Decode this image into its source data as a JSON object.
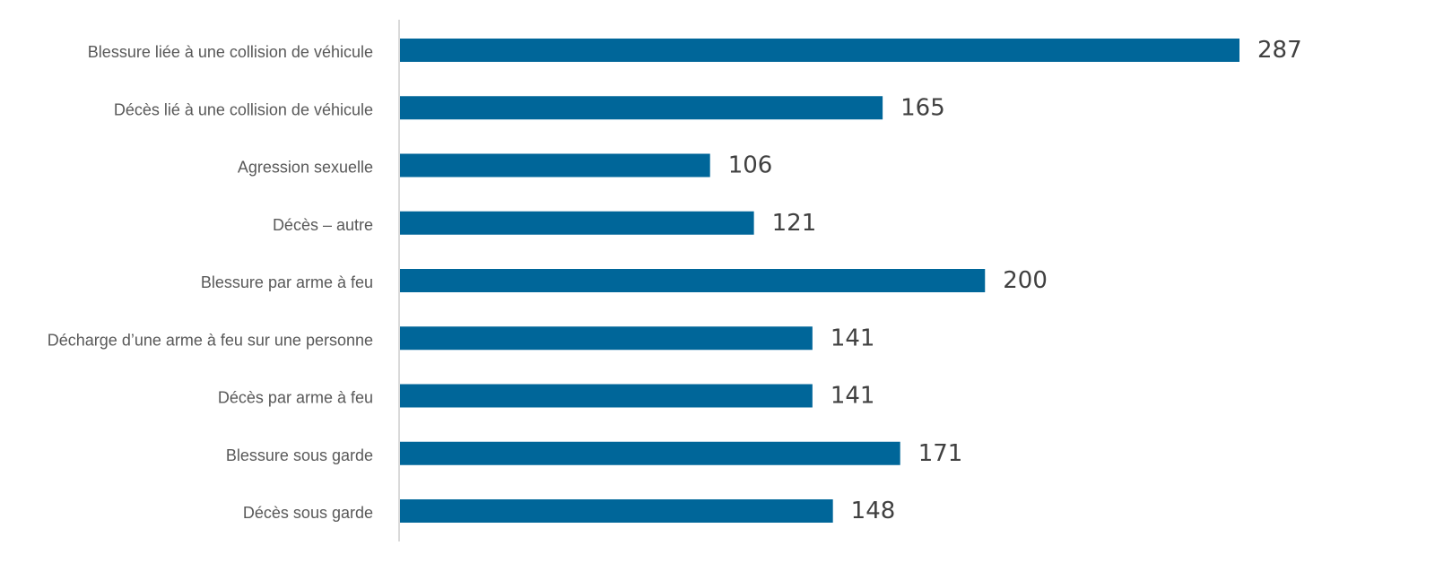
{
  "chart_data": {
    "type": "bar",
    "orientation": "horizontal",
    "categories": [
      "Blessure liée à une collision de véhicule",
      "Décès lié à une collision de véhicule",
      "Agression sexuelle",
      "Décès – autre",
      "Blessure par arme à feu",
      "Décharge d’une arme à feu sur une personne",
      "Décès par arme à feu",
      "Blessure sous garde",
      "Décès sous garde"
    ],
    "values": [
      287,
      165,
      106,
      121,
      200,
      141,
      141,
      171,
      148
    ],
    "xlim": [
      0,
      287
    ],
    "grid": false,
    "legend": "none",
    "title": "",
    "xlabel": "",
    "ylabel": "",
    "colors": {
      "bar": "#006699",
      "axis": "#d9d9d9",
      "category_text": "#595959",
      "value_text": "#404040"
    }
  }
}
